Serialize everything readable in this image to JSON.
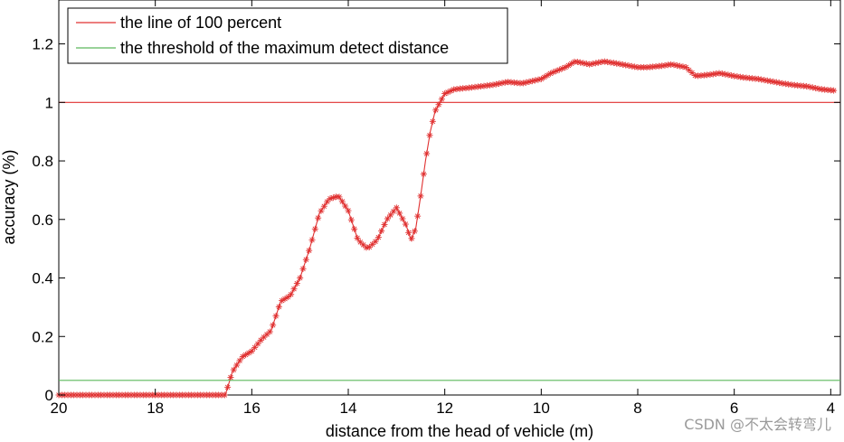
{
  "chart_data": {
    "type": "line",
    "title": "",
    "xlabel": "distance from the head of vehicle (m)",
    "ylabel": "accuracy (%)",
    "xlim": [
      20,
      3.8
    ],
    "x_reversed": true,
    "ylim": [
      0,
      1.35
    ],
    "xticks": [
      20,
      18,
      16,
      14,
      12,
      10,
      8,
      6,
      4
    ],
    "yticks": [
      0,
      0.2,
      0.4,
      0.6,
      0.8,
      1,
      1.2
    ],
    "xtick_labels": [
      "20",
      "18",
      "16",
      "14",
      "12",
      "10",
      "8",
      "6",
      "4"
    ],
    "ytick_labels": [
      "0",
      "0.2",
      "0.4",
      "0.6",
      "0.8",
      "1",
      "1.2"
    ],
    "grid": false,
    "legend_position": "top-left",
    "legend": [
      {
        "label": "the line of 100 percent",
        "color": "#e03030"
      },
      {
        "label": "the threshold of the maximum detect distance",
        "color": "#5cb85c"
      }
    ],
    "series": [
      {
        "name": "accuracy",
        "color": "#e03030",
        "marker": "asterisk",
        "x": [
          20.0,
          19.0,
          18.0,
          17.0,
          16.55,
          16.4,
          16.2,
          16.0,
          15.8,
          15.6,
          15.4,
          15.2,
          15.0,
          14.8,
          14.6,
          14.4,
          14.2,
          14.0,
          13.8,
          13.6,
          13.4,
          13.2,
          13.0,
          12.8,
          12.7,
          12.6,
          12.5,
          12.4,
          12.3,
          12.2,
          12.1,
          12.0,
          11.8,
          11.5,
          11.0,
          10.7,
          10.4,
          10.0,
          9.8,
          9.5,
          9.3,
          9.0,
          8.7,
          8.5,
          8.0,
          7.8,
          7.5,
          7.3,
          7.0,
          6.8,
          6.5,
          6.3,
          6.0,
          5.8,
          5.5,
          5.0,
          4.8,
          4.5,
          4.2,
          3.9
        ],
        "y": [
          0.0,
          0.0,
          0.0,
          0.0,
          0.0,
          0.08,
          0.13,
          0.15,
          0.19,
          0.22,
          0.32,
          0.34,
          0.4,
          0.5,
          0.62,
          0.67,
          0.68,
          0.63,
          0.53,
          0.5,
          0.53,
          0.6,
          0.64,
          0.58,
          0.53,
          0.57,
          0.68,
          0.8,
          0.9,
          0.97,
          1.0,
          1.03,
          1.045,
          1.05,
          1.06,
          1.07,
          1.065,
          1.08,
          1.1,
          1.12,
          1.14,
          1.13,
          1.14,
          1.135,
          1.12,
          1.12,
          1.125,
          1.13,
          1.12,
          1.09,
          1.095,
          1.1,
          1.09,
          1.085,
          1.08,
          1.065,
          1.06,
          1.055,
          1.045,
          1.04
        ]
      },
      {
        "name": "the line of 100 percent",
        "color": "#e03030",
        "marker": "none",
        "x": [
          20.0,
          3.8
        ],
        "y": [
          1.0,
          1.0
        ]
      },
      {
        "name": "the threshold of the maximum detect distance",
        "color": "#5cb85c",
        "marker": "none",
        "x": [
          20.0,
          3.8
        ],
        "y": [
          0.05,
          0.05
        ]
      }
    ]
  },
  "watermark": "CSDN @不太会转弯儿"
}
